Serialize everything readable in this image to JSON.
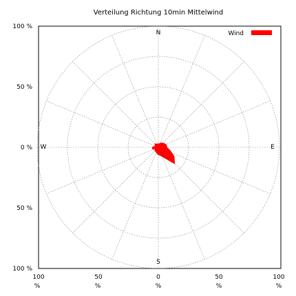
{
  "chart_data": {
    "type": "radar",
    "title": "Verteilung Richtung  10min Mittelwind",
    "legend": {
      "label": "Wind",
      "color": "#ff0000",
      "placement": "top-right"
    },
    "compass": {
      "north": "N",
      "east": "E",
      "south": "S",
      "west": "W"
    },
    "y_tick_labels": [
      "100 %",
      "50 %",
      "0 %",
      "50 %",
      "100 %"
    ],
    "x_tick_labels": [
      "100",
      "50",
      "0",
      "50",
      "100"
    ],
    "x_tick_unit": "%",
    "rlim": [
      0,
      100
    ],
    "grid": true,
    "series": [
      {
        "name": "Wind",
        "color": "#ff0000",
        "directions_deg": [
          0,
          15,
          30,
          45,
          60,
          75,
          90,
          105,
          120,
          135,
          150,
          165,
          180,
          195,
          210,
          225,
          240,
          255,
          270,
          285,
          300,
          315,
          330,
          345
        ],
        "values": [
          3,
          3,
          4,
          5,
          6,
          7,
          7,
          10,
          15,
          19,
          10,
          7,
          6,
          5,
          4,
          4,
          3,
          5,
          5,
          3,
          3,
          4,
          3,
          3
        ]
      }
    ]
  }
}
